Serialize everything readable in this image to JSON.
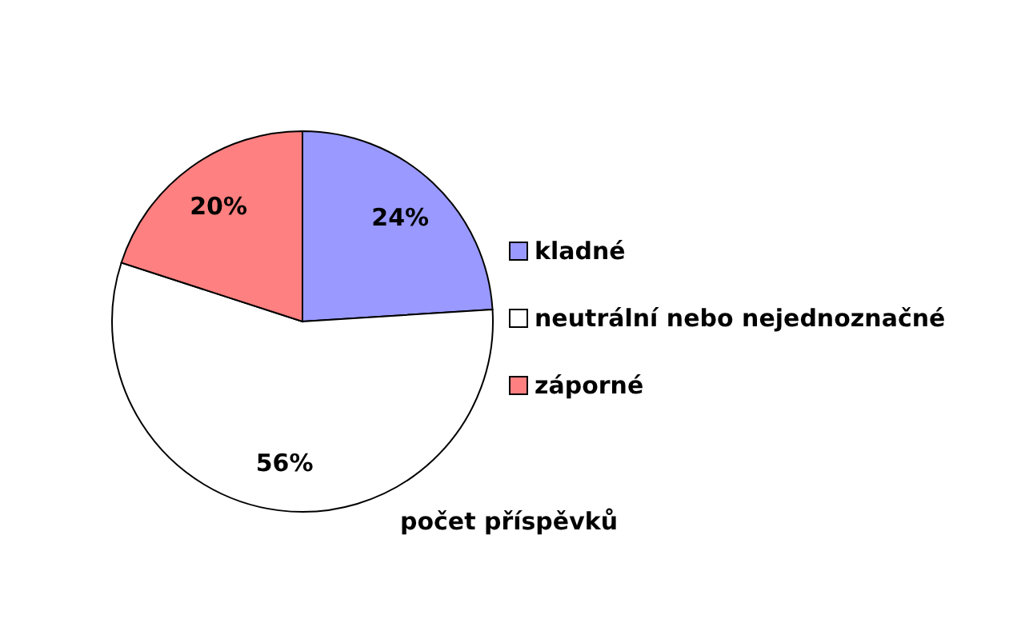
{
  "chart_data": {
    "type": "pie",
    "title": "počet příspěvků",
    "categories": [
      "kladné",
      "neutrální nebo nejednoznačné",
      "záporné"
    ],
    "values": [
      24,
      56,
      20
    ],
    "colors": [
      "#9999ff",
      "#ffffff",
      "#ff8080"
    ],
    "value_labels": [
      "24%",
      "56%",
      "20%"
    ],
    "legend": "right"
  }
}
